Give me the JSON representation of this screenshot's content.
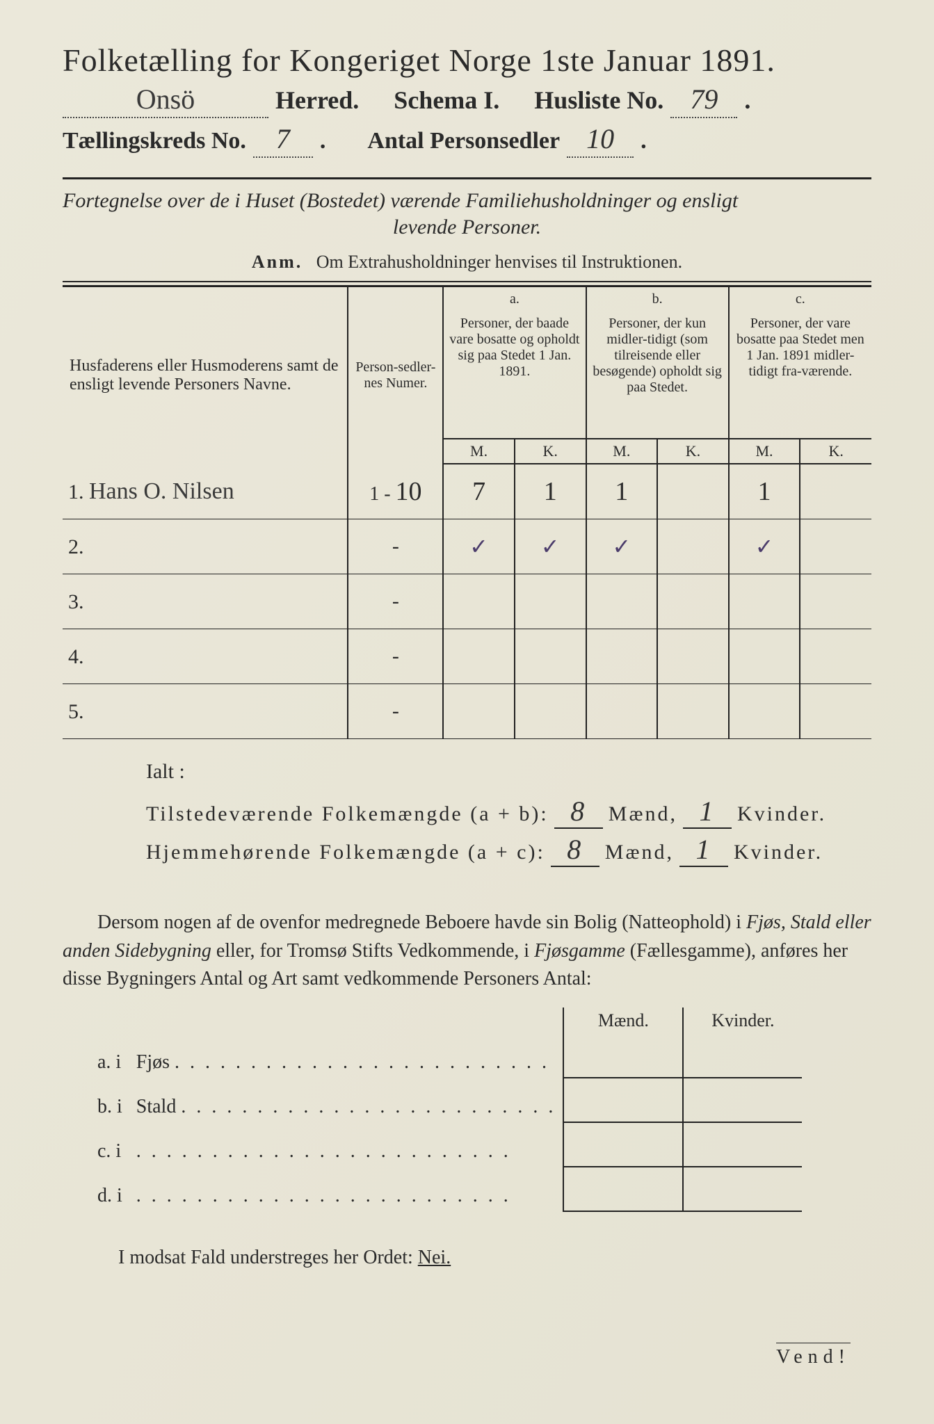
{
  "title": "Folketælling for Kongeriget Norge 1ste Januar 1891.",
  "header": {
    "herred_hw": "Onsö",
    "herred_label": "Herred.",
    "schema_label": "Schema I.",
    "husliste_label": "Husliste No.",
    "husliste_no": "79",
    "kreds_label": "Tællingskreds No.",
    "kreds_no": "7",
    "antal_label": "Antal Personsedler",
    "antal_no": "10"
  },
  "subtitle1": "Fortegnelse over de i Huset (Bostedet) værende Familiehusholdninger og ensligt",
  "subtitle2": "levende Personer.",
  "anm": "Anm.   Om Extrahusholdninger henvises til Instruktionen.",
  "columns": {
    "name": "Husfaderens eller Husmoderens samt de ensligt levende Personers Navne.",
    "numer": "Person-sedler-nes Numer.",
    "a_head": "a.",
    "a": "Personer, der baade vare bosatte og opholdt sig paa Stedet 1 Jan. 1891.",
    "b_head": "b.",
    "b": "Personer, der kun midler-tidigt (som tilreisende eller besøgende) opholdt sig paa Stedet.",
    "c_head": "c.",
    "c": "Personer, der vare bosatte paa Stedet men 1 Jan. 1891 midler-tidigt fra-værende.",
    "M": "M.",
    "K": "K."
  },
  "rows": [
    {
      "n": "1.",
      "name": "Hans O. Nilsen",
      "numer": "1 - 10",
      "aM": "7",
      "aK": "1",
      "bM": "1",
      "bK": "",
      "cM": "1",
      "cK": ""
    },
    {
      "n": "2.",
      "name": "",
      "numer": "-",
      "aM": "✓",
      "aK": "✓",
      "bM": "✓",
      "bK": "",
      "cM": "✓",
      "cK": ""
    },
    {
      "n": "3.",
      "name": "",
      "numer": "-",
      "aM": "",
      "aK": "",
      "bM": "",
      "bK": "",
      "cM": "",
      "cK": ""
    },
    {
      "n": "4.",
      "name": "",
      "numer": "-",
      "aM": "",
      "aK": "",
      "bM": "",
      "bK": "",
      "cM": "",
      "cK": ""
    },
    {
      "n": "5.",
      "name": "",
      "numer": "-",
      "aM": "",
      "aK": "",
      "bM": "",
      "bK": "",
      "cM": "",
      "cK": ""
    }
  ],
  "totals": {
    "ialt": "Ialt :",
    "line1_label": "Tilstedeværende Folkemængde (a + b):",
    "line1_m": "8",
    "line1_k": "1",
    "line2_label": "Hjemmehørende Folkemængde (a + c):",
    "line2_m": "8",
    "line2_k": "1",
    "maend": "Mænd,",
    "kvinder": "Kvinder."
  },
  "paragraph": "Dersom nogen af de ovenfor medregnede Beboere havde sin Bolig (Natteophold) i Fjøs, Stald eller anden Sidebygning eller, for Tromsø Stifts Vedkommende, i Fjøsgamme (Fællesgamme), anføres her disse Bygningers Antal og Art samt vedkommende Personers Antal:",
  "bldg": {
    "maend": "Mænd.",
    "kvinder": "Kvinder.",
    "rows": [
      {
        "lead": "a. i",
        "label": "Fjøs"
      },
      {
        "lead": "b. i",
        "label": "Stald"
      },
      {
        "lead": "c. i",
        "label": ""
      },
      {
        "lead": "d. i",
        "label": ""
      }
    ]
  },
  "final": "I modsat Fald understreges her Ordet:",
  "nei": "Nei.",
  "vend": "Vend!",
  "colors": {
    "paper": "#e8e6d8",
    "ink": "#2a2a2a",
    "rule": "#222222",
    "check": "#4b3c6b"
  }
}
